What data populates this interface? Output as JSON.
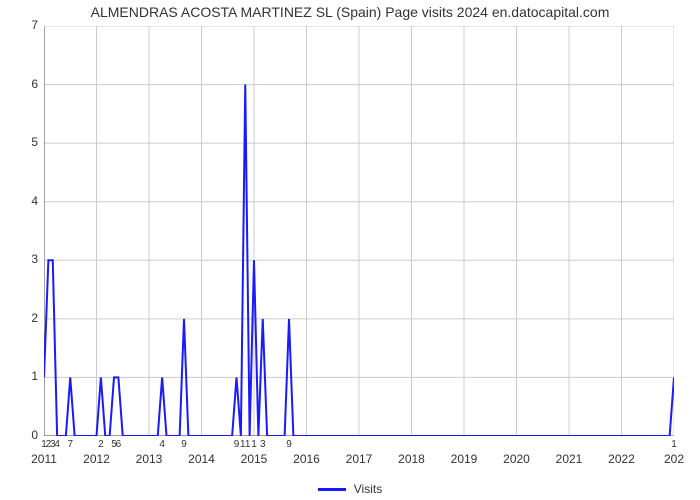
{
  "chart": {
    "type": "line",
    "title": "ALMENDRAS ACOSTA MARTINEZ SL (Spain) Page visits 2024 en.datocapital.com",
    "title_fontsize": 14,
    "title_color": "#333333",
    "background_color": "#ffffff",
    "plot_border_color": "#666666",
    "grid_color": "#cccccc",
    "line_color": "#1a1aff",
    "line_width": 2,
    "y": {
      "min": 0,
      "max": 7,
      "ticks": [
        0,
        1,
        2,
        3,
        4,
        5,
        6,
        7
      ],
      "label_fontsize": 12,
      "label_color": "#333333"
    },
    "x": {
      "min": 0,
      "max": 144,
      "major_gridlines_x": [
        0,
        12,
        24,
        36,
        48,
        60,
        72,
        84,
        96,
        108,
        120,
        132,
        144
      ],
      "major_labels": [
        "2011",
        "2012",
        "2013",
        "2014",
        "2015",
        "2016",
        "2017",
        "2018",
        "2019",
        "2020",
        "2021",
        "2022",
        "202"
      ],
      "minor_ticks": [
        {
          "x": 0,
          "label": "1"
        },
        {
          "x": 1,
          "label": "2"
        },
        {
          "x": 2,
          "label": "3"
        },
        {
          "x": 3,
          "label": "4"
        },
        {
          "x": 6,
          "label": "7"
        },
        {
          "x": 13,
          "label": "2"
        },
        {
          "x": 16,
          "label": "5"
        },
        {
          "x": 17,
          "label": "6"
        },
        {
          "x": 27,
          "label": "4"
        },
        {
          "x": 32,
          "label": "9"
        },
        {
          "x": 44,
          "label": "9"
        },
        {
          "x": 46,
          "label": "11"
        },
        {
          "x": 48,
          "label": "1"
        },
        {
          "x": 50,
          "label": "3"
        },
        {
          "x": 56,
          "label": "9"
        },
        {
          "x": 144,
          "label": "1"
        }
      ],
      "label_fontsize": 12,
      "label_color": "#333333"
    },
    "series": [
      {
        "name": "Visits",
        "color": "#1a1aff",
        "points": [
          [
            0,
            1
          ],
          [
            1,
            3
          ],
          [
            2,
            3
          ],
          [
            3,
            0
          ],
          [
            4,
            0
          ],
          [
            5,
            0
          ],
          [
            6,
            1
          ],
          [
            7,
            0
          ],
          [
            8,
            0
          ],
          [
            9,
            0
          ],
          [
            10,
            0
          ],
          [
            11,
            0
          ],
          [
            12,
            0
          ],
          [
            13,
            1
          ],
          [
            14,
            0
          ],
          [
            15,
            0
          ],
          [
            16,
            1
          ],
          [
            17,
            1
          ],
          [
            18,
            0
          ],
          [
            19,
            0
          ],
          [
            20,
            0
          ],
          [
            21,
            0
          ],
          [
            22,
            0
          ],
          [
            23,
            0
          ],
          [
            24,
            0
          ],
          [
            25,
            0
          ],
          [
            26,
            0
          ],
          [
            27,
            1
          ],
          [
            28,
            0
          ],
          [
            29,
            0
          ],
          [
            30,
            0
          ],
          [
            31,
            0
          ],
          [
            32,
            2
          ],
          [
            33,
            0
          ],
          [
            34,
            0
          ],
          [
            35,
            0
          ],
          [
            36,
            0
          ],
          [
            37,
            0
          ],
          [
            38,
            0
          ],
          [
            39,
            0
          ],
          [
            40,
            0
          ],
          [
            41,
            0
          ],
          [
            42,
            0
          ],
          [
            43,
            0
          ],
          [
            44,
            1
          ],
          [
            45,
            0
          ],
          [
            46,
            6
          ],
          [
            47,
            0
          ],
          [
            48,
            3
          ],
          [
            49,
            0
          ],
          [
            50,
            2
          ],
          [
            51,
            0
          ],
          [
            52,
            0
          ],
          [
            53,
            0
          ],
          [
            54,
            0
          ],
          [
            55,
            0
          ],
          [
            56,
            2
          ],
          [
            57,
            0
          ],
          [
            58,
            0
          ],
          [
            59,
            0
          ],
          [
            60,
            0
          ],
          [
            61,
            0
          ],
          [
            62,
            0
          ],
          [
            63,
            0
          ],
          [
            64,
            0
          ],
          [
            65,
            0
          ],
          [
            66,
            0
          ],
          [
            67,
            0
          ],
          [
            68,
            0
          ],
          [
            69,
            0
          ],
          [
            70,
            0
          ],
          [
            71,
            0
          ],
          [
            72,
            0
          ],
          [
            73,
            0
          ],
          [
            74,
            0
          ],
          [
            75,
            0
          ],
          [
            76,
            0
          ],
          [
            77,
            0
          ],
          [
            78,
            0
          ],
          [
            79,
            0
          ],
          [
            80,
            0
          ],
          [
            81,
            0
          ],
          [
            82,
            0
          ],
          [
            83,
            0
          ],
          [
            84,
            0
          ],
          [
            85,
            0
          ],
          [
            86,
            0
          ],
          [
            87,
            0
          ],
          [
            88,
            0
          ],
          [
            89,
            0
          ],
          [
            90,
            0
          ],
          [
            91,
            0
          ],
          [
            92,
            0
          ],
          [
            93,
            0
          ],
          [
            94,
            0
          ],
          [
            95,
            0
          ],
          [
            96,
            0
          ],
          [
            97,
            0
          ],
          [
            98,
            0
          ],
          [
            99,
            0
          ],
          [
            100,
            0
          ],
          [
            101,
            0
          ],
          [
            102,
            0
          ],
          [
            103,
            0
          ],
          [
            104,
            0
          ],
          [
            105,
            0
          ],
          [
            106,
            0
          ],
          [
            107,
            0
          ],
          [
            108,
            0
          ],
          [
            109,
            0
          ],
          [
            110,
            0
          ],
          [
            111,
            0
          ],
          [
            112,
            0
          ],
          [
            113,
            0
          ],
          [
            114,
            0
          ],
          [
            115,
            0
          ],
          [
            116,
            0
          ],
          [
            117,
            0
          ],
          [
            118,
            0
          ],
          [
            119,
            0
          ],
          [
            120,
            0
          ],
          [
            121,
            0
          ],
          [
            122,
            0
          ],
          [
            123,
            0
          ],
          [
            124,
            0
          ],
          [
            125,
            0
          ],
          [
            126,
            0
          ],
          [
            127,
            0
          ],
          [
            128,
            0
          ],
          [
            129,
            0
          ],
          [
            130,
            0
          ],
          [
            131,
            0
          ],
          [
            132,
            0
          ],
          [
            133,
            0
          ],
          [
            134,
            0
          ],
          [
            135,
            0
          ],
          [
            136,
            0
          ],
          [
            137,
            0
          ],
          [
            138,
            0
          ],
          [
            139,
            0
          ],
          [
            140,
            0
          ],
          [
            141,
            0
          ],
          [
            142,
            0
          ],
          [
            143,
            0
          ],
          [
            144,
            1
          ]
        ]
      }
    ],
    "legend": {
      "label": "Visits",
      "color": "#1a1aff",
      "position": "bottom-center",
      "fontsize": 12
    }
  }
}
